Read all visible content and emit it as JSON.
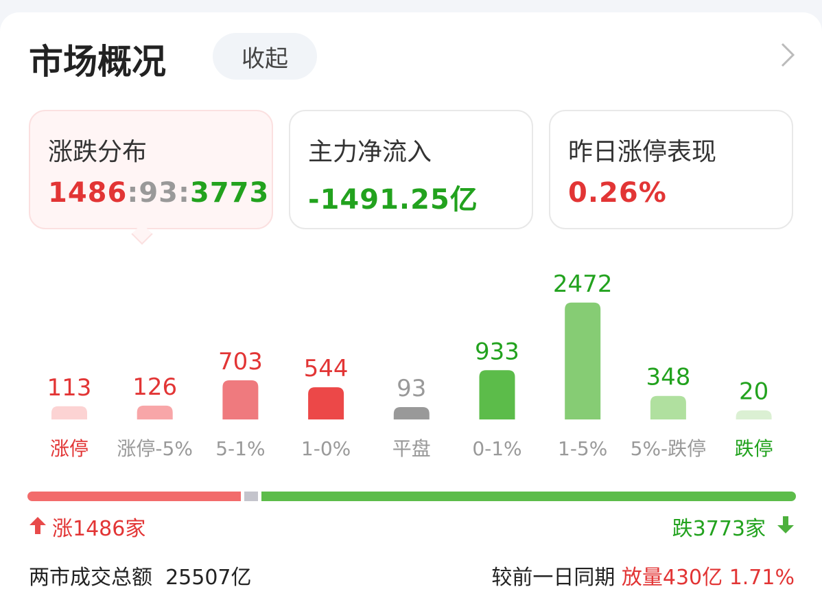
{
  "header": {
    "title": "市场概况",
    "collapse_label": "收起"
  },
  "cards": [
    {
      "label": "涨跌分布",
      "up": "1486",
      "flat": "93",
      "down": "3773",
      "sep": ":"
    },
    {
      "label": "主力净流入",
      "value": "-1491.25亿"
    },
    {
      "label": "昨日涨停表现",
      "value": "0.26%"
    }
  ],
  "chart_data": {
    "type": "bar",
    "categories": [
      "涨停",
      "涨停-5%",
      "5-1%",
      "1-0%",
      "平盘",
      "0-1%",
      "1-5%",
      "5%-跌停",
      "跌停"
    ],
    "values": [
      113,
      126,
      703,
      544,
      93,
      933,
      2472,
      348,
      20
    ],
    "bar_colors": [
      "#fcd3d3",
      "#f8a6a8",
      "#ef7a7e",
      "#ec4848",
      "#999999",
      "#5cbc4a",
      "#86cc74",
      "#b0e09f",
      "#dbf0d3"
    ],
    "value_colors": [
      "#e23535",
      "#e23535",
      "#e23535",
      "#e23535",
      "#999999",
      "#22a21e",
      "#22a21e",
      "#22a21e",
      "#22a21e"
    ],
    "label_colors": [
      "#e23535",
      "#999999",
      "#999999",
      "#999999",
      "#999999",
      "#999999",
      "#999999",
      "#999999",
      "#22a21e"
    ]
  },
  "breadth": {
    "up_count": 1486,
    "flat_count": 93,
    "down_count": 3773,
    "up_text": "涨1486家",
    "down_text": "跌3773家",
    "up_color": "#f26b6b",
    "flat_color": "#c4c4cc",
    "down_color": "#5cbc4a"
  },
  "footer": {
    "turnover_label": "两市成交总额",
    "turnover_value": "25507亿",
    "compare_label": "较前一日同期",
    "compare_change": "放量430亿",
    "compare_pct": "1.71%"
  }
}
